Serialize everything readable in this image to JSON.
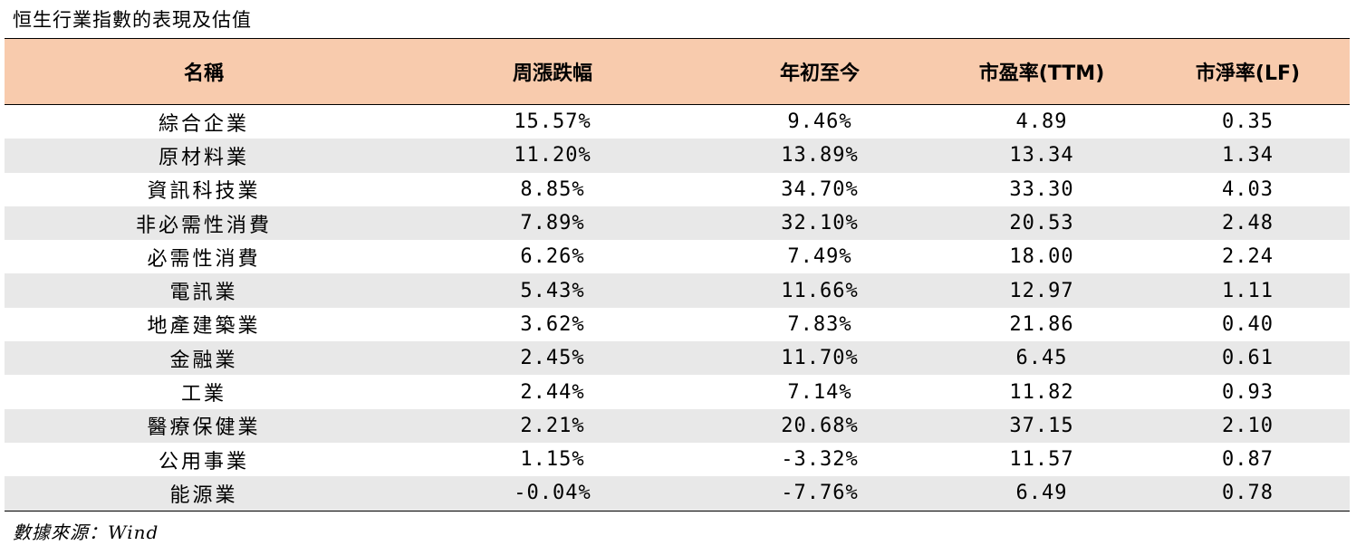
{
  "title": "恒生行業指數的表現及估值",
  "headers": [
    "名稱",
    "周漲跌幅",
    "年初至今",
    "市盈率(TTM)",
    "市淨率(LF)"
  ],
  "rows": [
    [
      "綜合企業",
      "15.57%",
      "9.46%",
      "4.89",
      "0.35"
    ],
    [
      "原材料業",
      "11.20%",
      "13.89%",
      "13.34",
      "1.34"
    ],
    [
      "資訊科技業",
      "8.85%",
      "34.70%",
      "33.30",
      "4.03"
    ],
    [
      "非必需性消費",
      "7.89%",
      "32.10%",
      "20.53",
      "2.48"
    ],
    [
      "必需性消費",
      "6.26%",
      "7.49%",
      "18.00",
      "2.24"
    ],
    [
      "電訊業",
      "5.43%",
      "11.66%",
      "12.97",
      "1.11"
    ],
    [
      "地產建築業",
      "3.62%",
      "7.83%",
      "21.86",
      "0.40"
    ],
    [
      "金融業",
      "2.45%",
      "11.70%",
      "6.45",
      "0.61"
    ],
    [
      "工業",
      "2.44%",
      "7.14%",
      "11.82",
      "0.93"
    ],
    [
      "醫療保健業",
      "2.21%",
      "20.68%",
      "37.15",
      "2.10"
    ],
    [
      "公用事業",
      "1.15%",
      "-3.32%",
      "11.57",
      "0.87"
    ],
    [
      "能源業",
      "-0.04%",
      "-7.76%",
      "6.49",
      "0.78"
    ]
  ],
  "source": "數據來源：Wind",
  "colors": {
    "header_bg": "#f8cbad",
    "stripe_bg": "#e8e8e8"
  }
}
